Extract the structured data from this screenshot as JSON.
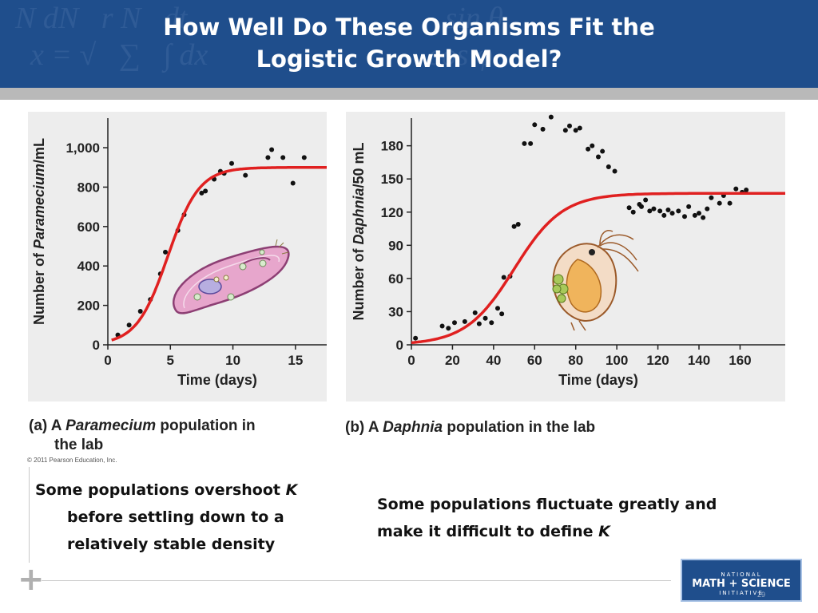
{
  "slide": {
    "title_line1": "How Well Do These Organisms Fit the",
    "title_line2": "Logistic Growth Model?",
    "copyright": "© 2011 Pearson Education, Inc.",
    "note_left_line1": "Some populations overshoot",
    "note_left_k": "K",
    "note_left_line2": "before settling down to a",
    "note_left_line3": "relatively stable density",
    "note_right_line1": "Some populations fluctuate greatly and",
    "note_right_line2": "make it difficult to define",
    "note_right_k": "K",
    "logo_line1": "NATIONAL",
    "logo_line2": "MATH + SCIENCE",
    "logo_line3": "INITIATIVE",
    "slide_number": "29",
    "colors": {
      "header": "#1f4e8c",
      "curve": "#e02020",
      "points": "#111111",
      "panel": "#ededed"
    }
  },
  "chart_data": [
    {
      "type": "scatter",
      "caption_prefix": "(a) A",
      "caption_italic": "Paramecium",
      "caption_rest": "population in",
      "caption_line2": "the lab",
      "xlabel": "Time (days)",
      "ylabel_prefix": "Number of",
      "ylabel_italic": "Paramecium",
      "ylabel_suffix": "/mL",
      "xlim": [
        0,
        17.5
      ],
      "ylim": [
        0,
        1150
      ],
      "xticks": [
        0,
        5,
        10,
        15
      ],
      "xtick_labels": [
        "0",
        "5",
        "10",
        "15"
      ],
      "yticks": [
        0,
        200,
        400,
        600,
        800,
        1000
      ],
      "ytick_labels": [
        "0",
        "200",
        "400",
        "600",
        "800",
        "1,000"
      ],
      "grid": false,
      "points": [
        [
          0.8,
          50
        ],
        [
          1.7,
          100
        ],
        [
          2.6,
          170
        ],
        [
          3.4,
          230
        ],
        [
          4.2,
          360
        ],
        [
          4.6,
          470
        ],
        [
          5.6,
          580
        ],
        [
          6.1,
          660
        ],
        [
          7.5,
          770
        ],
        [
          7.8,
          780
        ],
        [
          8.5,
          840
        ],
        [
          9,
          880
        ],
        [
          9.3,
          870
        ],
        [
          9.9,
          920
        ],
        [
          11,
          860
        ],
        [
          12.8,
          950
        ],
        [
          13.1,
          990
        ],
        [
          14,
          950
        ],
        [
          14.8,
          820
        ],
        [
          15.7,
          950
        ]
      ],
      "curve": {
        "label": "logistic model",
        "K": 900,
        "r": 0.8,
        "t0": 4.8,
        "x_start": 0.3,
        "x_end": 17.5,
        "color": "#e02020"
      }
    },
    {
      "type": "scatter",
      "caption_prefix": "(b) A",
      "caption_italic": "Daphnia",
      "caption_rest": "population in the lab",
      "xlabel": "Time (days)",
      "ylabel_prefix": "Number of",
      "ylabel_italic": "Daphnia",
      "ylabel_suffix": "/50 mL",
      "xlim": [
        0,
        182
      ],
      "ylim": [
        0,
        205
      ],
      "xticks": [
        0,
        20,
        40,
        60,
        80,
        100,
        120,
        140,
        160
      ],
      "xtick_labels": [
        "0",
        "20",
        "40",
        "60",
        "80",
        "100",
        "120",
        "140",
        "160"
      ],
      "yticks": [
        0,
        30,
        60,
        90,
        120,
        150,
        180
      ],
      "ytick_labels": [
        "0",
        "30",
        "60",
        "90",
        "120",
        "150",
        "180"
      ],
      "grid": false,
      "points": [
        [
          2,
          6
        ],
        [
          15,
          17
        ],
        [
          18,
          15
        ],
        [
          21,
          20
        ],
        [
          26,
          21
        ],
        [
          31,
          29
        ],
        [
          33,
          19
        ],
        [
          36,
          24
        ],
        [
          39,
          20
        ],
        [
          42,
          33
        ],
        [
          44,
          28
        ],
        [
          45,
          61
        ],
        [
          48,
          62
        ],
        [
          50,
          107
        ],
        [
          52,
          109
        ],
        [
          55,
          182
        ],
        [
          58,
          182
        ],
        [
          60,
          199
        ],
        [
          64,
          195
        ],
        [
          68,
          206
        ],
        [
          75,
          194
        ],
        [
          77,
          198
        ],
        [
          80,
          194
        ],
        [
          82,
          196
        ],
        [
          86,
          177
        ],
        [
          88,
          180
        ],
        [
          91,
          170
        ],
        [
          93,
          175
        ],
        [
          96,
          161
        ],
        [
          99,
          157
        ],
        [
          106,
          124
        ],
        [
          108,
          120
        ],
        [
          111,
          127
        ],
        [
          112,
          125
        ],
        [
          114,
          131
        ],
        [
          116,
          121
        ],
        [
          118,
          123
        ],
        [
          121,
          121
        ],
        [
          123,
          117
        ],
        [
          125,
          122
        ],
        [
          127,
          119
        ],
        [
          130,
          121
        ],
        [
          133,
          116
        ],
        [
          135,
          125
        ],
        [
          138,
          117
        ],
        [
          140,
          119
        ],
        [
          142,
          115
        ],
        [
          144,
          123
        ],
        [
          146,
          133
        ],
        [
          150,
          128
        ],
        [
          152,
          135
        ],
        [
          155,
          128
        ],
        [
          158,
          141
        ],
        [
          161,
          138
        ],
        [
          163,
          140
        ]
      ],
      "curve": {
        "label": "logistic model",
        "K": 137,
        "r": 0.085,
        "t0": 50,
        "x_start": 0,
        "x_end": 182,
        "color": "#e02020"
      }
    }
  ]
}
